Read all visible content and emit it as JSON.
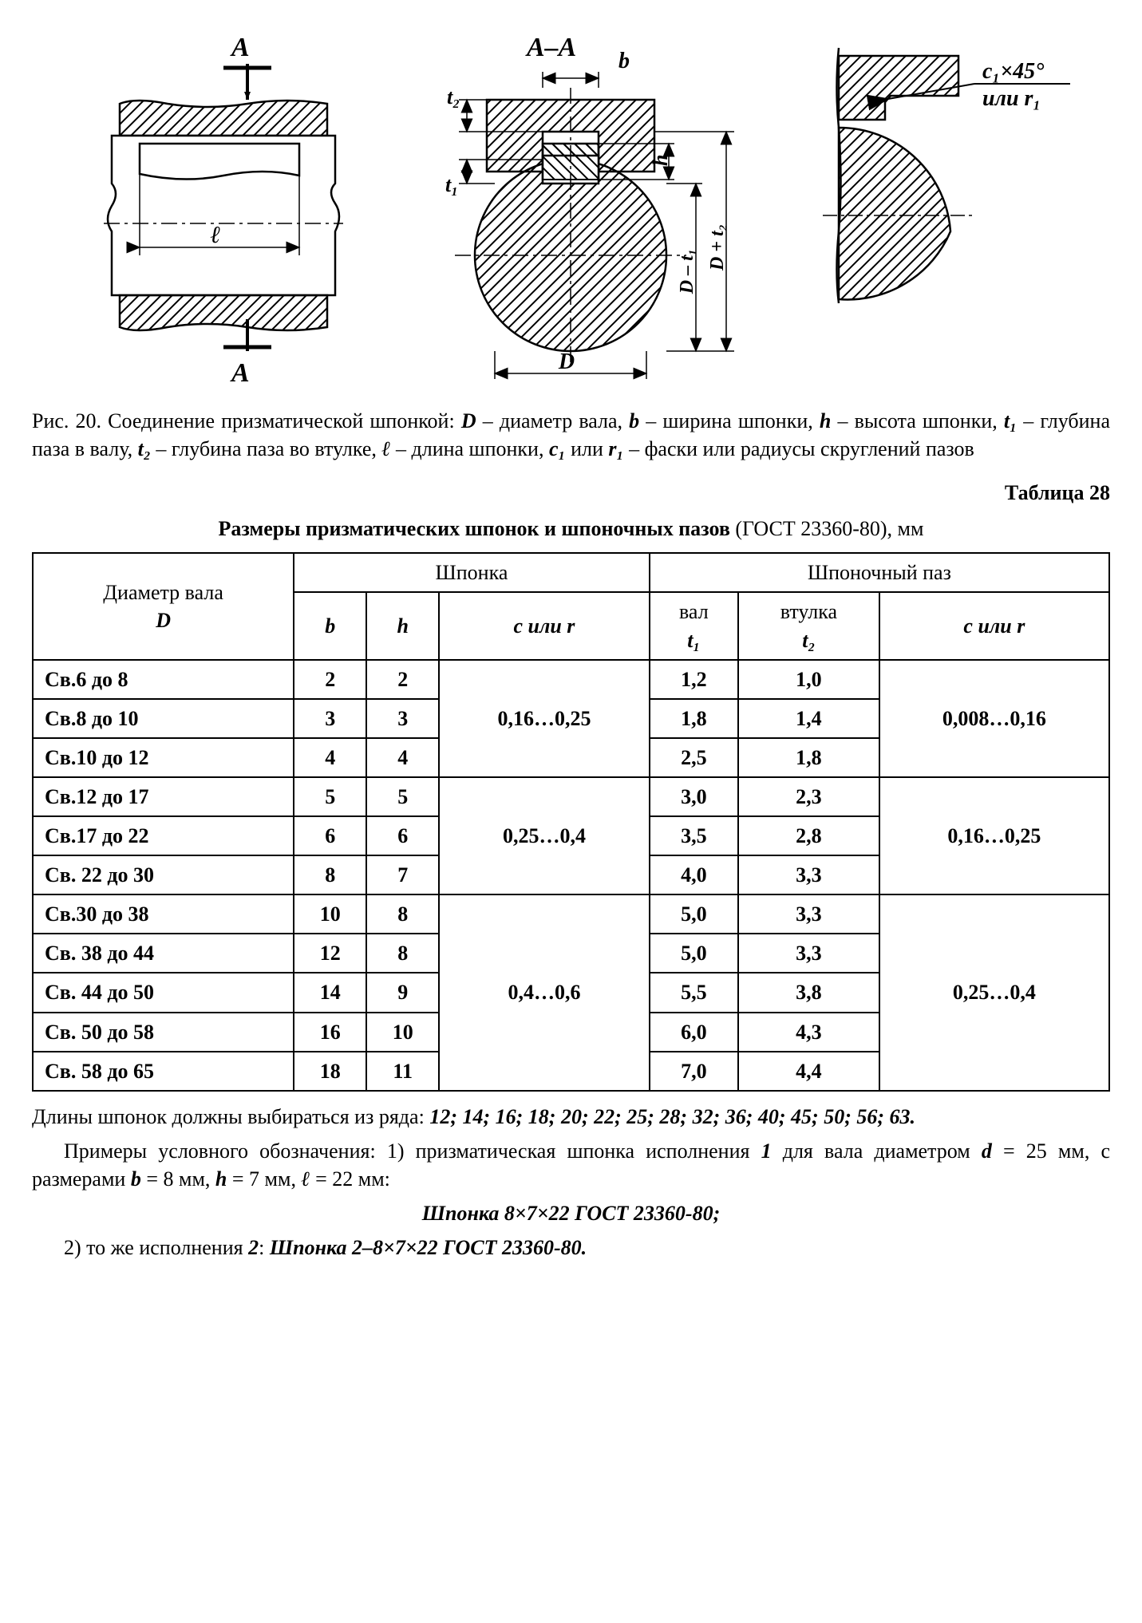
{
  "figure": {
    "labelA_top": "А",
    "labelA_bot": "А",
    "section_label": "А–А",
    "dim_l": "ℓ",
    "dim_b": "b",
    "dim_t1": "t₁",
    "dim_t2": "t₂",
    "dim_h": "h",
    "dim_D": "D",
    "dim_Dmt1": "D – t₁",
    "dim_Dpt2": "D + t₂",
    "chamfer": "c₁×45°",
    "chamfer2": "или r₁"
  },
  "caption": {
    "prefix": "Рис. 20. Соединение призматической шпонкой: ",
    "D": "D",
    "D_txt": " – диаметр вала, ",
    "b": "b",
    "b_txt": " – ширина шпонки, ",
    "h": "h",
    "h_txt": " – высота шпонки, ",
    "t1": "t₁",
    "t1_txt": " – глубина паза в валу, ",
    "t2": "t₂",
    "t2_txt": " – глубина паза во втулке, ",
    "l": "ℓ",
    "l_txt": " – длина шпонки, ",
    "c1": "c₁",
    "or": " или ",
    "r1": "r₁",
    "tail": " – фаски или радиусы скруглений пазов"
  },
  "table_label": "Таблица 28",
  "table_title_bold": "Размеры призматических шпонок и шпоночных пазов",
  "table_title_rest": " (ГОСТ 23360-80), мм",
  "headers": {
    "diam": "Диаметр вала",
    "diam_sym": "D",
    "key": "Шпонка",
    "groove": "Шпоночный паз",
    "b": "b",
    "h": "h",
    "c_or_r": "c или r",
    "shaft": "вал",
    "shaft_sym": "t₁",
    "bush": "втулка",
    "bush_sym": "t₂"
  },
  "groups": [
    {
      "cr_key": "0,16…0,25",
      "cr_groove": "0,008…0,16",
      "rows": [
        {
          "d": "Св.6 до 8",
          "b": "2",
          "h": "2",
          "t1": "1,2",
          "t2": "1,0"
        },
        {
          "d": "Св.8 до 10",
          "b": "3",
          "h": "3",
          "t1": "1,8",
          "t2": "1,4"
        },
        {
          "d": "Св.10 до 12",
          "b": "4",
          "h": "4",
          "t1": "2,5",
          "t2": "1,8"
        }
      ]
    },
    {
      "cr_key": "0,25…0,4",
      "cr_groove": "0,16…0,25",
      "rows": [
        {
          "d": "Св.12 до 17",
          "b": "5",
          "h": "5",
          "t1": "3,0",
          "t2": "2,3"
        },
        {
          "d": "Св.17 до 22",
          "b": "6",
          "h": "6",
          "t1": "3,5",
          "t2": "2,8"
        },
        {
          "d": "Св. 22 до 30",
          "b": "8",
          "h": "7",
          "t1": "4,0",
          "t2": "3,3"
        }
      ]
    },
    {
      "cr_key": "0,4…0,6",
      "cr_groove": "0,25…0,4",
      "rows": [
        {
          "d": "Св.30 до 38",
          "b": "10",
          "h": "8",
          "t1": "5,0",
          "t2": "3,3"
        },
        {
          "d": "Св. 38 до 44",
          "b": "12",
          "h": "8",
          "t1": "5,0",
          "t2": "3,3"
        },
        {
          "d": "Св. 44 до 50",
          "b": "14",
          "h": "9",
          "t1": "5,5",
          "t2": "3,8"
        },
        {
          "d": "Св. 50 до 58",
          "b": "16",
          "h": "10",
          "t1": "6,0",
          "t2": "4,3"
        },
        {
          "d": "Св. 58 до 65",
          "b": "18",
          "h": "11",
          "t1": "7,0",
          "t2": "4,4"
        }
      ]
    }
  ],
  "lengths_line1": "Длины шпонок должны выбираться из ряда: ",
  "lengths_bold": "12; 14; 16; 18; 20; 22; 25; 28; 32; 36; 40; 45; 50; 56; 63.",
  "example_intro": "Примеры условного обозначения: 1) призматическая шпонка исполнения ",
  "ex_1": "1",
  "example_mid": " для вала диаметром ",
  "ex_d": "d",
  "ex_d_val": " = 25 мм, с размерами ",
  "ex_b": "b",
  "ex_b_val": " = 8 мм, ",
  "ex_h": "h",
  "ex_h_val": " = 7 мм, ",
  "ex_l": "ℓ",
  "ex_l_val": " = 22 мм:",
  "designation1": "Шпонка 8×7×22 ГОСТ 23360-80",
  "example2_pre": "2) то же исполнения ",
  "ex_2": "2",
  "example2_colon": ":   ",
  "designation2": "Шпонка 2–8×7×22 ГОСТ 23360-80.",
  "style": {
    "hatch_stroke": "#000000",
    "line_stroke": "#000000",
    "stroke_width": 2.5,
    "thin_width": 1.5,
    "font_size_label": 30,
    "font_size_dim": 26
  }
}
